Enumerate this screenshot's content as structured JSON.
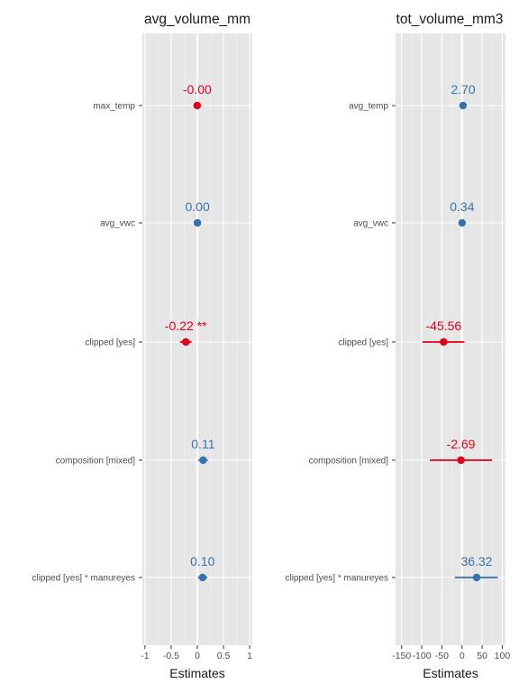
{
  "colors": {
    "positive": "#3572b0",
    "negative": "#e3001b",
    "panel_bg": "#e6e6e6",
    "grid_major": "#ffffff",
    "grid_minor": "#f2f2f2"
  },
  "chart_data": [
    {
      "type": "forest",
      "title": "avg_volume_mm",
      "xlabel": "Estimates",
      "xlim": [
        -1.05,
        1.05
      ],
      "xticks": [
        -1,
        -0.5,
        0,
        0.5,
        1
      ],
      "xtick_labels": [
        "-1",
        "-0.5",
        "0",
        "0.5",
        "1"
      ],
      "terms": [
        "max_temp",
        "avg_vwc",
        "clipped [yes]",
        "composition [mixed]",
        "clipped [yes] * manureyes"
      ],
      "estimates": [
        -0.003,
        0.002,
        -0.22,
        0.11,
        0.1
      ],
      "ci_low": [
        -0.01,
        -0.005,
        -0.33,
        0.02,
        0.01
      ],
      "ci_high": [
        0.004,
        0.009,
        -0.11,
        0.2,
        0.19
      ],
      "value_labels": [
        "-0.00",
        "0.00",
        "-0.22 **",
        "0.11",
        "0.10"
      ]
    },
    {
      "type": "forest",
      "title": "tot_volume_mm3",
      "xlabel": "Estimates",
      "xlim": [
        -165,
        108
      ],
      "xticks": [
        -150,
        -100,
        -50,
        0,
        50,
        100
      ],
      "xtick_labels": [
        "-150",
        "-100",
        "-50",
        "0",
        "50",
        "100"
      ],
      "terms": [
        "avg_temp",
        "avg_vwc",
        "clipped [yes]",
        "composition [mixed]",
        "clipped [yes] * manureyes"
      ],
      "estimates": [
        2.7,
        0.34,
        -45.56,
        -2.69,
        36.32
      ],
      "ci_low": [
        -1.5,
        -2.0,
        -98,
        -80,
        -18
      ],
      "ci_high": [
        6.9,
        2.7,
        6,
        75,
        89
      ],
      "value_labels": [
        "2.70",
        "0.34",
        "-45.56",
        "-2.69",
        "36.32"
      ]
    }
  ]
}
